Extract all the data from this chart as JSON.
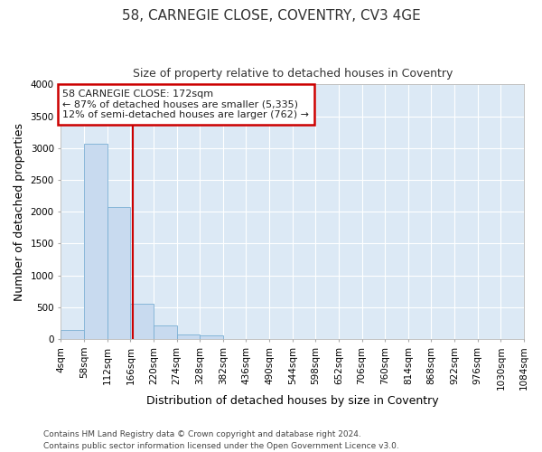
{
  "title": "58, CARNEGIE CLOSE, COVENTRY, CV3 4GE",
  "subtitle": "Size of property relative to detached houses in Coventry",
  "xlabel": "Distribution of detached houses by size in Coventry",
  "ylabel": "Number of detached properties",
  "bin_edges": [
    4,
    58,
    112,
    166,
    220,
    274,
    328,
    382,
    436,
    490,
    544,
    598,
    652,
    706,
    760,
    814,
    868,
    922,
    976,
    1030,
    1084
  ],
  "bar_heights": [
    150,
    3070,
    2070,
    560,
    210,
    75,
    55,
    0,
    0,
    0,
    0,
    0,
    0,
    0,
    0,
    0,
    0,
    0,
    0,
    0
  ],
  "bar_color": "#c8daef",
  "bar_edge_color": "#7aafd4",
  "property_size": 172,
  "vline_color": "#cc0000",
  "annotation_line1": "58 CARNEGIE CLOSE: 172sqm",
  "annotation_line2": "← 87% of detached houses are smaller (5,335)",
  "annotation_line3": "12% of semi-detached houses are larger (762) →",
  "annotation_box_color": "#cc0000",
  "ylim": [
    0,
    4000
  ],
  "yticks": [
    0,
    500,
    1000,
    1500,
    2000,
    2500,
    3000,
    3500,
    4000
  ],
  "plot_bg_color": "#dce9f5",
  "fig_bg_color": "#ffffff",
  "grid_color": "#ffffff",
  "footer_line1": "Contains HM Land Registry data © Crown copyright and database right 2024.",
  "footer_line2": "Contains public sector information licensed under the Open Government Licence v3.0.",
  "title_fontsize": 11,
  "subtitle_fontsize": 9,
  "axis_label_fontsize": 9,
  "tick_fontsize": 7.5,
  "footer_fontsize": 6.5
}
